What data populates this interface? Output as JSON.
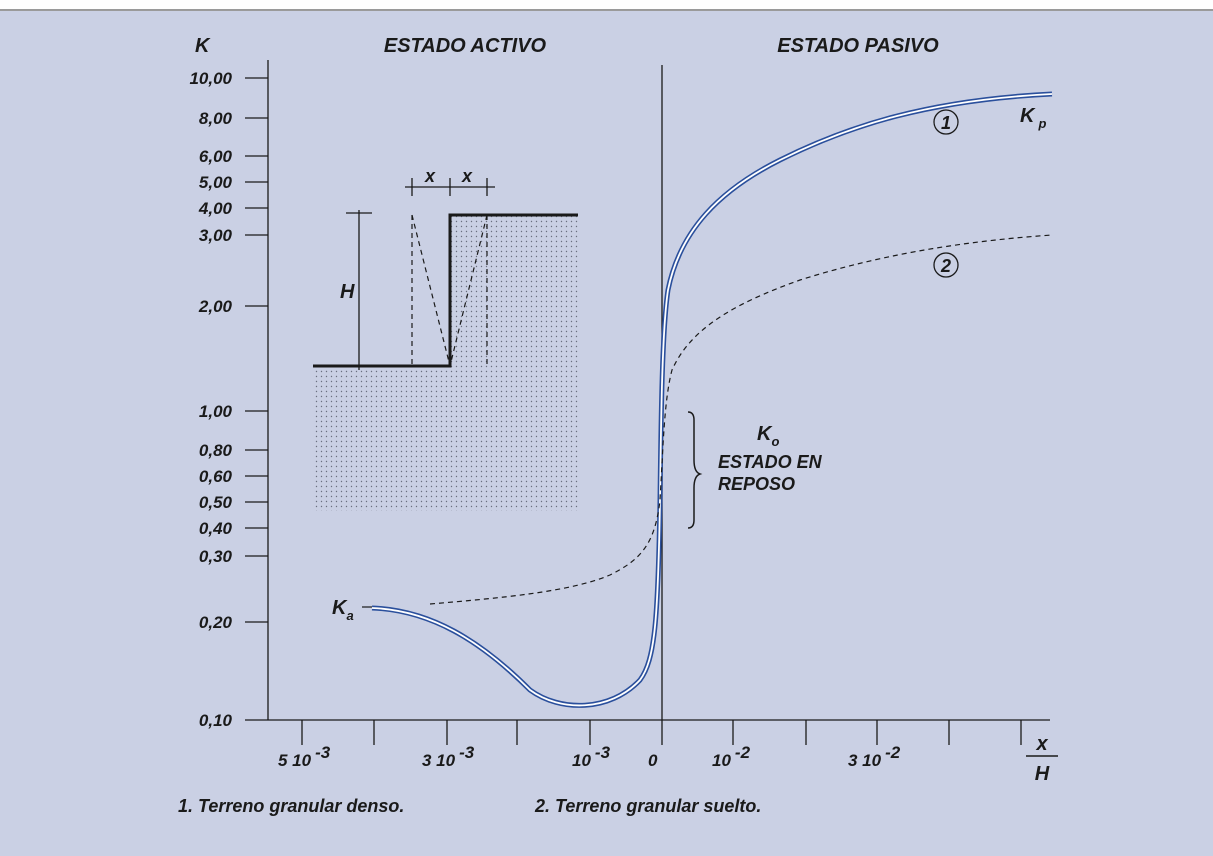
{
  "header": {
    "y_axis_label": "K",
    "left_region": "ESTADO ACTIVO",
    "right_region": "ESTADO PASIVO"
  },
  "y_axis": {
    "ticks": [
      "10,00",
      "8,00",
      "6,00",
      "5,00",
      "4,00",
      "3,00",
      "2,00",
      "1,00",
      "0,80",
      "0,60",
      "0,50",
      "0,40",
      "0,30",
      "0,20",
      "0,10"
    ]
  },
  "x_axis": {
    "ticks": [
      {
        "base": "5 10",
        "exponent": "-3"
      },
      {
        "base": "3 10",
        "exponent": "-3"
      },
      {
        "base": "10",
        "exponent": "-3"
      },
      {
        "base": "0"
      },
      {
        "base": "10",
        "exponent": "-2"
      },
      {
        "base": "3 10",
        "exponent": "-2"
      }
    ],
    "label": {
      "numerator": "x",
      "denominator": "H"
    }
  },
  "inset": {
    "height_label": "H",
    "offset_labels": [
      "x",
      "x"
    ]
  },
  "curves": {
    "active": {
      "symbol": "K",
      "subscript": "a"
    },
    "passive": {
      "symbol": "K",
      "subscript": "p"
    },
    "rest": {
      "symbol": "K",
      "subscript": "o",
      "lines": [
        "ESTADO EN",
        "REPOSO"
      ]
    },
    "curve_1_marker": "1",
    "curve_2_marker": "2"
  },
  "legend": [
    "1. Terreno granular denso.",
    "2. Terreno granular suelto."
  ]
}
